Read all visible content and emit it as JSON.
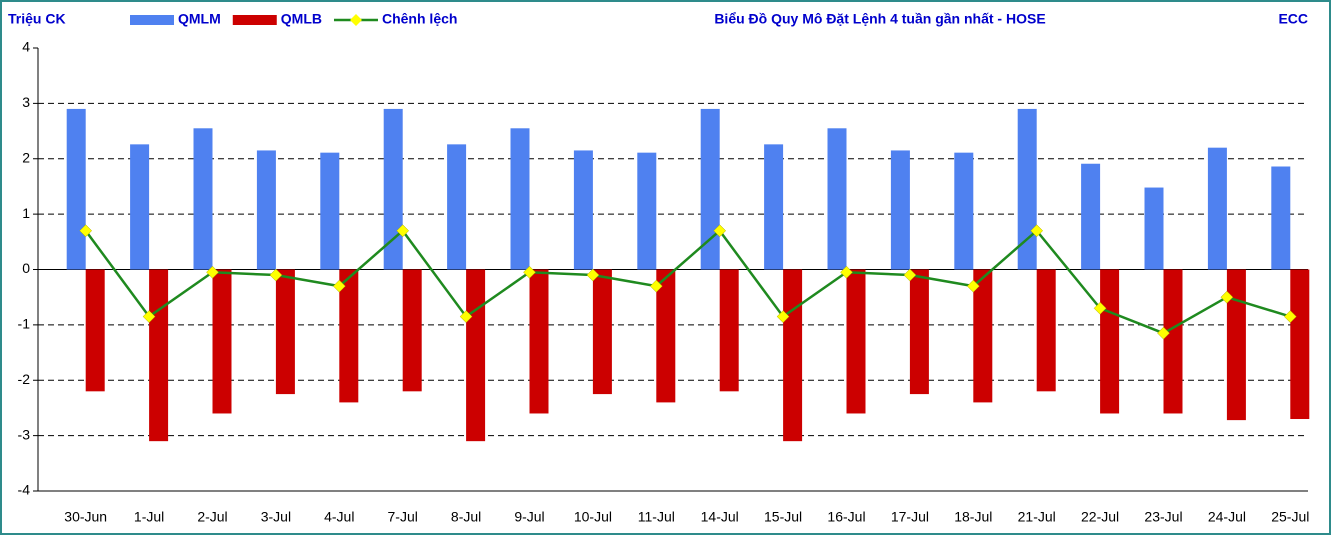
{
  "chart_data": {
    "type": "bar",
    "title": "Biểu Đồ Quy Mô Đặt Lệnh 4 tuần gần nhất - HOSE",
    "y_label": "Triệu CK",
    "annotation": "ECC",
    "categories": [
      "30-Jun",
      "1-Jul",
      "2-Jul",
      "3-Jul",
      "4-Jul",
      "7-Jul",
      "8-Jul",
      "9-Jul",
      "10-Jul",
      "11-Jul",
      "14-Jul",
      "15-Jul",
      "16-Jul",
      "17-Jul",
      "18-Jul",
      "21-Jul",
      "22-Jul",
      "23-Jul",
      "24-Jul",
      "25-Jul"
    ],
    "series": [
      {
        "name": "QMLM",
        "type": "bar",
        "color": "#4f81f0",
        "values": [
          2.9,
          2.26,
          2.55,
          2.15,
          2.11,
          2.9,
          2.26,
          2.55,
          2.15,
          2.11,
          2.9,
          2.26,
          2.55,
          2.15,
          2.11,
          2.9,
          1.91,
          1.48,
          2.2,
          1.86
        ]
      },
      {
        "name": "QMLB",
        "type": "bar",
        "color": "#cc0000",
        "values": [
          -2.2,
          -3.1,
          -2.6,
          -2.25,
          -2.4,
          -2.2,
          -3.1,
          -2.6,
          -2.25,
          -2.4,
          -2.2,
          -3.1,
          -2.6,
          -2.25,
          -2.4,
          -2.2,
          -2.6,
          -2.6,
          -2.72,
          -2.7
        ]
      },
      {
        "name": "Chênh lệch",
        "type": "line",
        "color": "#1f8a1f",
        "marker_color": "#ffff00",
        "values": [
          0.7,
          -0.85,
          -0.05,
          -0.1,
          -0.3,
          0.7,
          -0.85,
          -0.05,
          -0.1,
          -0.3,
          0.7,
          -0.85,
          -0.05,
          -0.1,
          -0.3,
          0.7,
          -0.7,
          -1.15,
          -0.5,
          -0.85
        ]
      }
    ],
    "ylim": [
      -4,
      4
    ],
    "yticks": [
      -4,
      -3,
      -2,
      -1,
      0,
      1,
      2,
      3,
      4
    ],
    "grid": true
  }
}
